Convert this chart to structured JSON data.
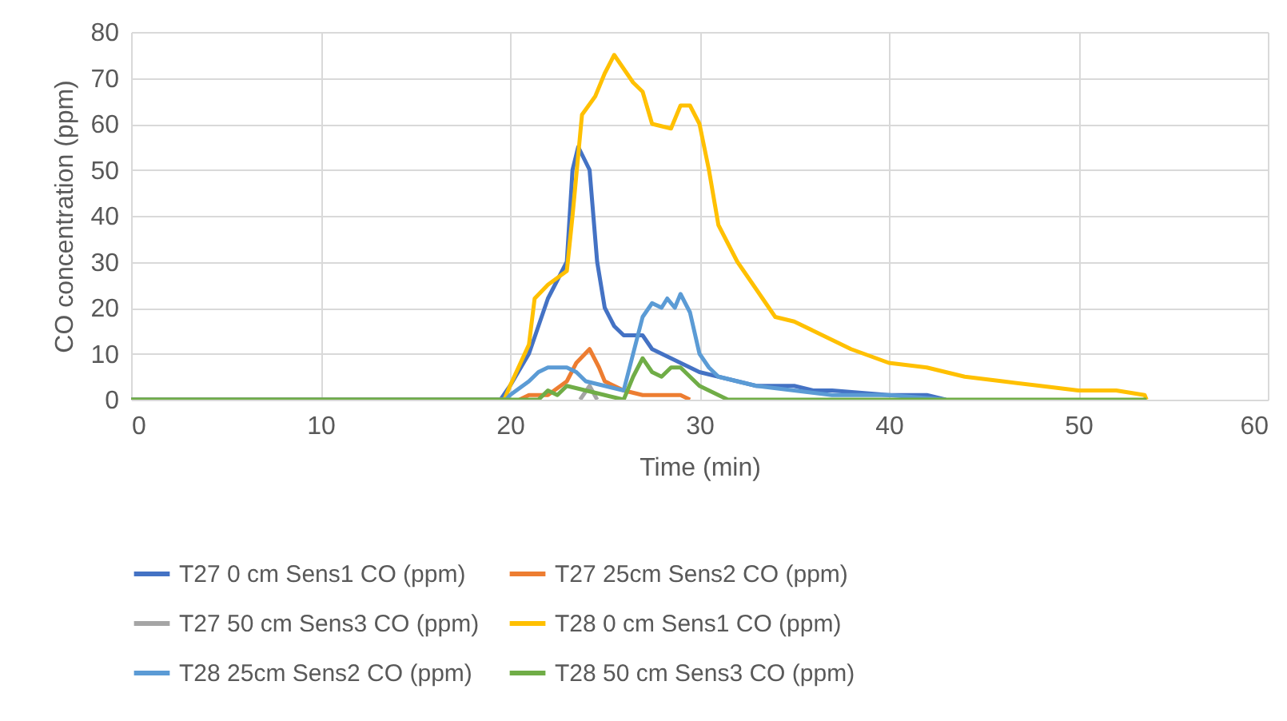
{
  "chart_data": {
    "type": "line",
    "xlabel": "Time  (min)",
    "ylabel": "CO concentration (ppm)",
    "xlim": [
      0,
      60
    ],
    "xticks": [
      0,
      10,
      20,
      30,
      40,
      50,
      60
    ],
    "ylim": [
      0,
      80
    ],
    "yticks": [
      0,
      10,
      20,
      30,
      40,
      50,
      60,
      70,
      80
    ],
    "grid": true,
    "legend": "bottom",
    "marker": "none",
    "line_style": "solid",
    "series": [
      {
        "name": "T27 0 cm Sens1 CO (ppm)",
        "color": "#4472c4",
        "x": [
          0,
          19.5,
          20,
          21,
          22,
          22.5,
          23,
          23.3,
          23.6,
          24.2,
          24.6,
          25,
          25.5,
          26,
          27,
          27.5,
          28,
          29,
          30,
          31,
          32,
          33,
          35,
          36,
          37,
          40,
          42,
          43
        ],
        "values": [
          0,
          0,
          3,
          10,
          22,
          26,
          30,
          50,
          55,
          50,
          30,
          20,
          16,
          14,
          14,
          11,
          10,
          8,
          6,
          5,
          4,
          3,
          3,
          2,
          2,
          1,
          1,
          0
        ]
      },
      {
        "name": "T27 25cm  Sens2 CO (ppm)",
        "color": "#ed7d31",
        "x": [
          20.5,
          21,
          22,
          23,
          23.5,
          24.2,
          24.7,
          25,
          26,
          27,
          28,
          29,
          29.5
        ],
        "values": [
          0,
          1,
          1,
          4,
          8,
          11,
          7,
          4,
          2,
          1,
          1,
          1,
          0
        ]
      },
      {
        "name": "T27 50 cm Sens3 CO (ppm)",
        "color": "#a5a5a5",
        "x": [
          23.7,
          24.2,
          24.6
        ],
        "values": [
          0,
          3,
          0
        ]
      },
      {
        "name": "T28 0 cm Sens1 CO (ppm)",
        "color": "#ffc000",
        "x": [
          0,
          19.7,
          20,
          21,
          21.3,
          22,
          23,
          23.3,
          23.8,
          24.5,
          25,
          25.5,
          26,
          26.5,
          27,
          27.5,
          28.5,
          29,
          29.5,
          30,
          30.5,
          31,
          32,
          33,
          34,
          35,
          36,
          37,
          38,
          40,
          42,
          44,
          46,
          48,
          50,
          52,
          53.5,
          53.6
        ],
        "values": [
          0,
          0,
          3,
          12,
          22,
          25,
          28,
          40,
          62,
          66,
          71,
          75,
          72,
          69,
          67,
          60,
          59,
          64,
          64,
          60,
          50,
          38,
          30,
          24,
          18,
          17,
          15,
          13,
          11,
          8,
          7,
          5,
          4,
          3,
          2,
          2,
          1,
          0
        ]
      },
      {
        "name": "T28 25cm  Sens2 CO (ppm)",
        "color": "#5b9bd5",
        "x": [
          0,
          19.8,
          20,
          21,
          21.5,
          22,
          23,
          23.5,
          24,
          25,
          26,
          26.5,
          27,
          27.5,
          28,
          28.3,
          28.7,
          29,
          29.5,
          30,
          30.5,
          31,
          32,
          33,
          35,
          37,
          40,
          43
        ],
        "values": [
          0,
          0,
          1,
          4,
          6,
          7,
          7,
          6,
          4,
          3,
          2,
          10,
          18,
          21,
          20,
          22,
          20,
          23,
          19,
          10,
          7,
          5,
          4,
          3,
          2,
          1,
          1,
          0
        ]
      },
      {
        "name": "T28 50 cm Sens3 CO (ppm)",
        "color": "#70ad47",
        "x": [
          0,
          21.5,
          22,
          22.5,
          23,
          24,
          25,
          26,
          26.5,
          27,
          27.5,
          28,
          28.5,
          29,
          30,
          31,
          31.5,
          53.6
        ],
        "values": [
          0,
          0,
          2,
          1,
          3,
          2,
          1,
          0,
          5,
          9,
          6,
          5,
          7,
          7,
          3,
          1,
          0,
          0
        ]
      }
    ]
  }
}
